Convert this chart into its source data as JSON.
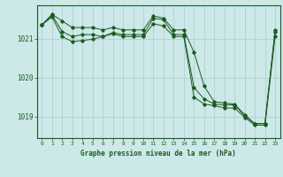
{
  "title": "Graphe pression niveau de la mer (hPa)",
  "background_color": "#cce8e8",
  "line_color": "#1a5c1a",
  "grid_color": "#aacccc",
  "xlim": [
    -0.5,
    23.5
  ],
  "ylim": [
    1018.45,
    1021.85
  ],
  "yticks": [
    1019,
    1020,
    1021
  ],
  "ytick_labels": [
    "1019",
    "1020",
    "1021"
  ],
  "xticks": [
    0,
    1,
    2,
    3,
    4,
    5,
    6,
    7,
    8,
    9,
    10,
    11,
    12,
    13,
    14,
    15,
    16,
    17,
    18,
    19,
    20,
    21,
    22,
    23
  ],
  "series1": [
    1021.35,
    1021.62,
    1021.45,
    1021.28,
    1021.28,
    1021.28,
    1021.22,
    1021.28,
    1021.22,
    1021.22,
    1021.22,
    1021.58,
    1021.52,
    1021.22,
    1021.22,
    1020.65,
    1019.78,
    1019.38,
    1019.35,
    1019.32,
    1019.05,
    1018.82,
    1018.82,
    1021.22
  ],
  "series2": [
    1021.35,
    1021.6,
    1021.18,
    1021.05,
    1021.1,
    1021.1,
    1021.05,
    1021.15,
    1021.1,
    1021.1,
    1021.1,
    1021.52,
    1021.48,
    1021.1,
    1021.1,
    1019.75,
    1019.45,
    1019.32,
    1019.3,
    1019.3,
    1019.02,
    1018.82,
    1018.82,
    1021.18
  ],
  "series3": [
    1021.35,
    1021.55,
    1021.05,
    1020.92,
    1020.95,
    1020.98,
    1021.05,
    1021.12,
    1021.05,
    1021.05,
    1021.05,
    1021.38,
    1021.32,
    1021.05,
    1021.05,
    1019.5,
    1019.32,
    1019.28,
    1019.22,
    1019.22,
    1018.98,
    1018.78,
    1018.78,
    1021.05
  ]
}
